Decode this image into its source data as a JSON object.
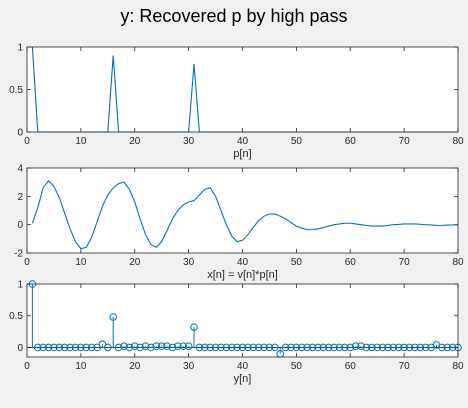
{
  "figure": {
    "title": "y: Recovered p by high pass",
    "background": "#f0f0f0",
    "line_color": "#0072bd"
  },
  "chart_data": [
    {
      "type": "line",
      "xlabel": "p[n]",
      "ylabel": "",
      "xlim": [
        0,
        80
      ],
      "ylim": [
        0,
        1
      ],
      "xticks": [
        0,
        10,
        20,
        30,
        40,
        50,
        60,
        70,
        80
      ],
      "yticks": [
        0,
        0.5,
        1
      ],
      "grid": false,
      "series": [
        {
          "x": [
            1,
            2,
            3,
            15,
            16,
            17,
            30,
            31,
            32,
            80
          ],
          "y": [
            1,
            0,
            0,
            0,
            0.9,
            0,
            0,
            0.8,
            0,
            0
          ]
        }
      ]
    },
    {
      "type": "line",
      "xlabel": "x[n] = v[n]*p[n]",
      "ylabel": "",
      "xlim": [
        0,
        80
      ],
      "ylim": [
        -2,
        4
      ],
      "xticks": [
        0,
        10,
        20,
        30,
        40,
        50,
        60,
        70,
        80
      ],
      "yticks": [
        -2,
        0,
        2,
        4
      ],
      "grid": false,
      "series": [
        {
          "x": [
            1,
            2,
            3,
            4,
            5,
            6,
            7,
            8,
            9,
            10,
            11,
            12,
            13,
            14,
            15,
            16,
            17,
            18,
            19,
            20,
            21,
            22,
            23,
            24,
            25,
            26,
            27,
            28,
            29,
            30,
            31,
            32,
            33,
            34,
            35,
            36,
            37,
            38,
            39,
            40,
            41,
            42,
            43,
            44,
            45,
            46,
            47,
            48,
            49,
            50,
            51,
            52,
            53,
            54,
            55,
            56,
            57,
            58,
            59,
            60,
            61,
            62,
            63,
            64,
            65,
            66,
            67,
            68,
            69,
            70,
            71,
            72,
            73,
            74,
            75,
            76,
            77,
            78,
            79,
            80
          ],
          "y": [
            0.1,
            1.2,
            2.6,
            3.1,
            2.7,
            1.9,
            0.8,
            -0.3,
            -1.2,
            -1.7,
            -1.6,
            -0.9,
            0.2,
            1.3,
            2.1,
            2.6,
            2.9,
            3.0,
            2.5,
            1.6,
            0.4,
            -0.7,
            -1.4,
            -1.6,
            -1.2,
            -0.4,
            0.4,
            1.0,
            1.4,
            1.6,
            1.7,
            2.1,
            2.5,
            2.6,
            2.0,
            1.0,
            0.0,
            -0.8,
            -1.2,
            -1.1,
            -0.7,
            -0.2,
            0.3,
            0.6,
            0.75,
            0.75,
            0.6,
            0.4,
            0.15,
            -0.1,
            -0.25,
            -0.35,
            -0.35,
            -0.3,
            -0.2,
            -0.1,
            0.0,
            0.05,
            0.1,
            0.1,
            0.05,
            0.0,
            -0.05,
            -0.1,
            -0.1,
            -0.1,
            -0.05,
            0.0,
            0.02,
            0.05,
            0.05,
            0.05,
            0.03,
            0.0,
            -0.02,
            -0.05,
            -0.05,
            -0.03,
            -0.02,
            0.0
          ]
        }
      ]
    },
    {
      "type": "stem",
      "xlabel": "y[n]",
      "ylabel": "",
      "xlim": [
        0,
        80
      ],
      "ylim": [
        -0.15,
        1
      ],
      "xticks": [
        0,
        10,
        20,
        30,
        40,
        50,
        60,
        70,
        80
      ],
      "yticks": [
        0,
        0.5,
        1
      ],
      "grid": false,
      "series": [
        {
          "x": [
            1,
            2,
            3,
            4,
            5,
            6,
            7,
            8,
            9,
            10,
            11,
            12,
            13,
            14,
            15,
            16,
            17,
            18,
            19,
            20,
            21,
            22,
            23,
            24,
            25,
            26,
            27,
            28,
            29,
            30,
            31,
            32,
            33,
            34,
            35,
            36,
            37,
            38,
            39,
            40,
            41,
            42,
            43,
            44,
            45,
            46,
            47,
            48,
            49,
            50,
            51,
            52,
            53,
            54,
            55,
            56,
            57,
            58,
            59,
            60,
            61,
            62,
            63,
            64,
            65,
            66,
            67,
            68,
            69,
            70,
            71,
            72,
            73,
            74,
            75,
            76,
            77,
            78,
            79,
            80
          ],
          "y": [
            1.0,
            0.0,
            0.0,
            0.0,
            0.0,
            0.0,
            0.0,
            0.0,
            0.0,
            0.0,
            0.0,
            0.0,
            0.0,
            0.05,
            0.0,
            0.48,
            0.0,
            0.02,
            0.0,
            0.02,
            0.0,
            0.02,
            0.0,
            0.02,
            0.02,
            0.02,
            0.0,
            0.02,
            0.02,
            0.02,
            0.32,
            0.0,
            0.0,
            0.0,
            0.0,
            0.0,
            0.0,
            0.0,
            0.0,
            0.0,
            0.0,
            0.0,
            0.0,
            0.0,
            0.0,
            0.0,
            -0.1,
            0.0,
            0.0,
            0.0,
            0.0,
            0.0,
            0.0,
            0.0,
            0.0,
            0.0,
            0.0,
            0.0,
            0.0,
            0.0,
            0.02,
            0.02,
            0.0,
            0.0,
            0.0,
            0.0,
            0.0,
            0.0,
            0.0,
            0.0,
            0.0,
            0.0,
            0.0,
            0.0,
            0.0,
            0.04,
            0.0,
            0.0,
            0.0,
            0.0
          ]
        }
      ]
    }
  ]
}
